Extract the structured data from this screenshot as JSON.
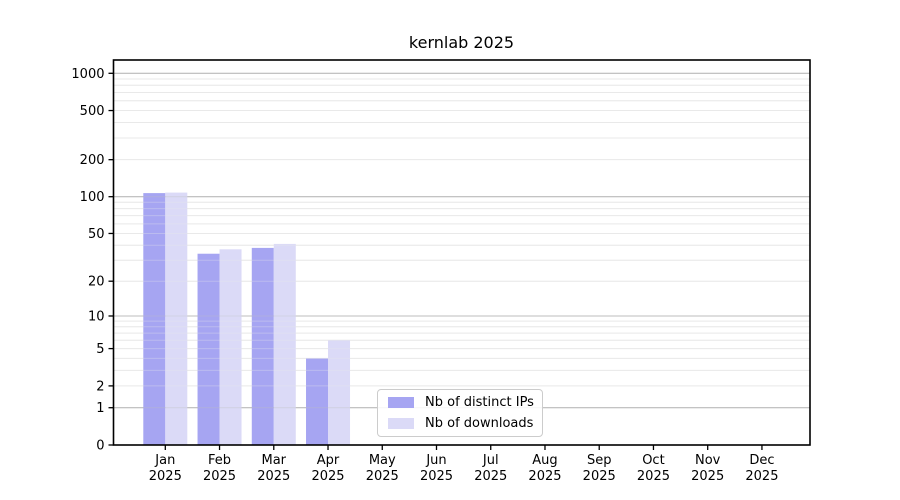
{
  "chart_data": {
    "type": "bar",
    "title": "kernlab 2025",
    "scale": "log1p",
    "grid": "horizontal, log minor and major lines",
    "legend_position": "bottom-center-inside",
    "year": "2025",
    "categories": [
      "Jan",
      "Feb",
      "Mar",
      "Apr",
      "May",
      "Jun",
      "Jul",
      "Aug",
      "Sep",
      "Oct",
      "Nov",
      "Dec"
    ],
    "series": [
      {
        "name": "Nb of distinct IPs",
        "color": "#a6a5f2",
        "values": [
          107,
          34,
          38,
          4,
          0,
          0,
          0,
          0,
          0,
          0,
          0,
          0
        ]
      },
      {
        "name": "Nb of downloads",
        "color": "#dbdaf7",
        "values": [
          108,
          37,
          41,
          6,
          0,
          0,
          0,
          0,
          0,
          0,
          0,
          0
        ]
      }
    ],
    "yticks": [
      0,
      1,
      2,
      5,
      10,
      20,
      50,
      100,
      200,
      500,
      1000
    ],
    "ylim": [
      0,
      1300
    ],
    "colors": {
      "axis": "#000000",
      "major_grid": "#bdbdbd",
      "minor_grid": "#e9e9e9",
      "text": "#000000",
      "legend_border": "#cccccc"
    }
  }
}
